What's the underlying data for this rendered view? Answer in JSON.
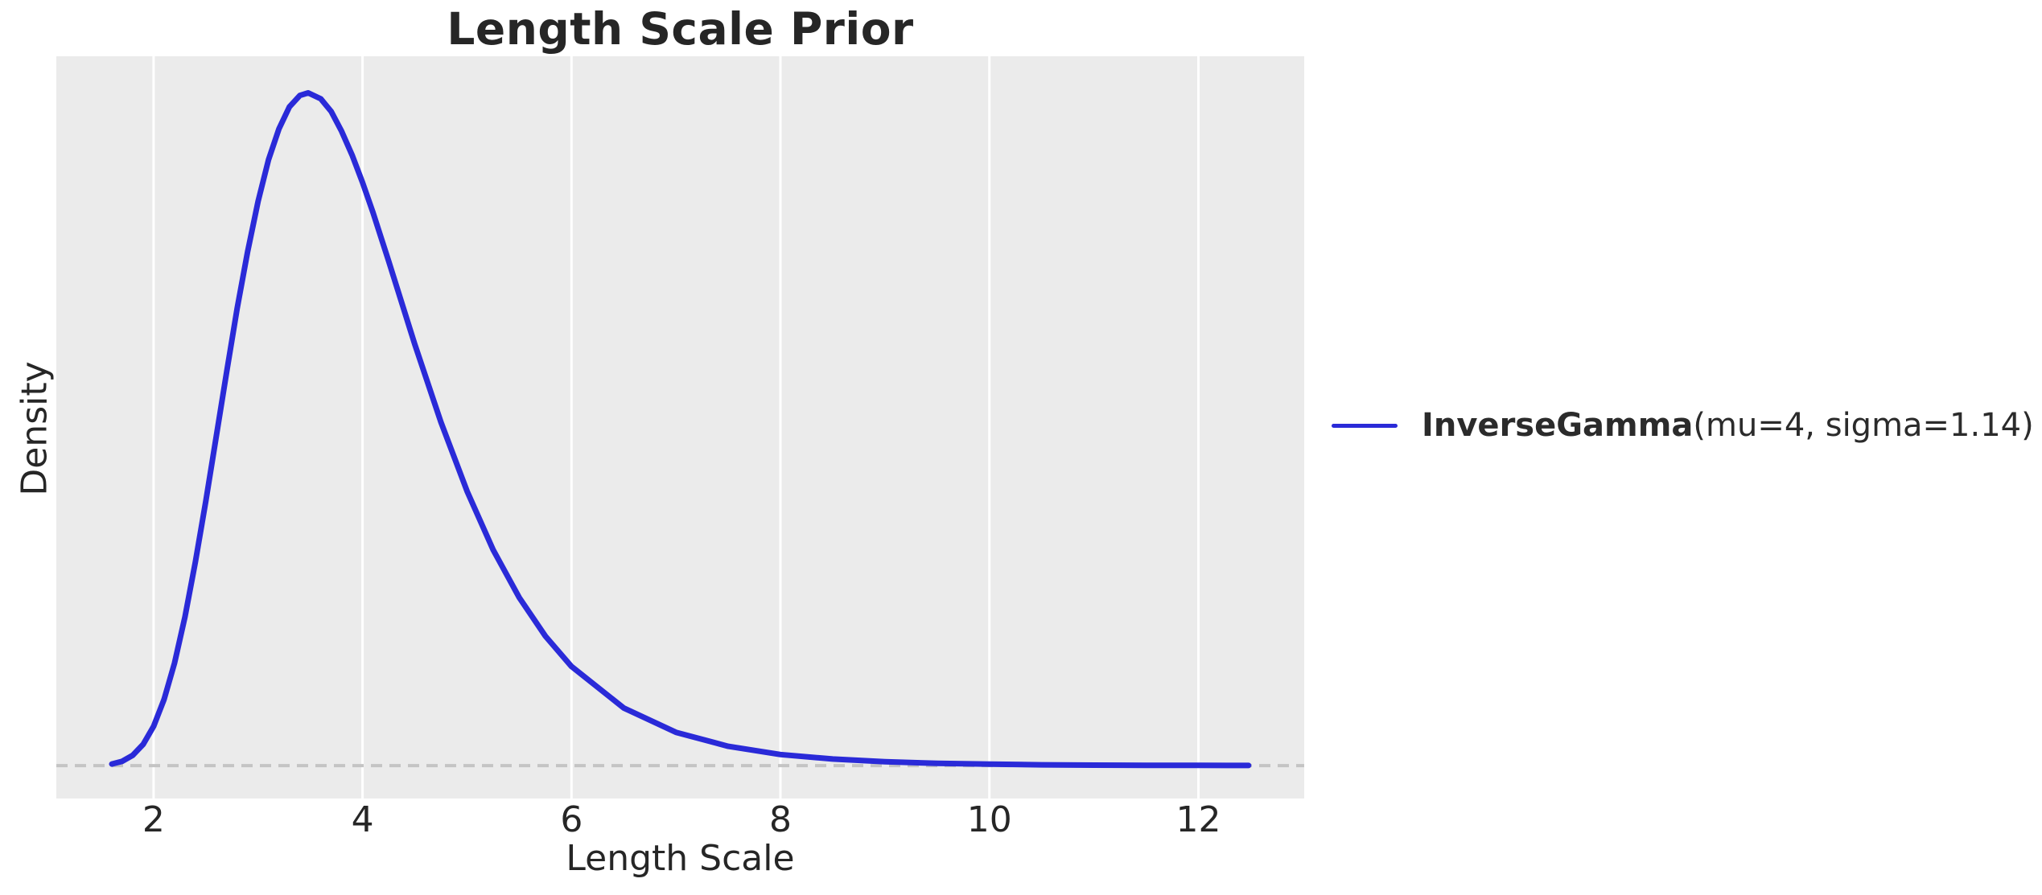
{
  "chart_data": {
    "type": "line",
    "title": "Length Scale Prior",
    "xlabel": "Length Scale",
    "ylabel": "Density",
    "x_ticks": [
      2,
      4,
      6,
      8,
      10,
      12
    ],
    "y_ticks": [],
    "xlim": [
      1.069,
      13.013
    ],
    "ylim": [
      -0.0205,
      0.4417
    ],
    "grid": "vertical-only",
    "plot_background": "#ebebeb",
    "gridline_color": "#ffffff",
    "legend_position": "center-right-outside",
    "baseline": {
      "y": 0,
      "style": "dashed",
      "color": "#c4c4c4"
    },
    "series": [
      {
        "name": "InverseGamma(mu=4, sigma=1.14)",
        "color": "#2a2ad8",
        "line_width": 7,
        "x": [
          1.6,
          1.7,
          1.8,
          1.9,
          2.0,
          2.1,
          2.2,
          2.3,
          2.4,
          2.5,
          2.6,
          2.7,
          2.8,
          2.9,
          3.0,
          3.1,
          3.2,
          3.3,
          3.4,
          3.48,
          3.6,
          3.7,
          3.8,
          3.9,
          4.0,
          4.1,
          4.25,
          4.5,
          4.75,
          5.0,
          5.25,
          5.5,
          5.75,
          6.0,
          6.5,
          7.0,
          7.5,
          8.0,
          8.5,
          9.0,
          9.5,
          10.0,
          10.5,
          11.0,
          11.5,
          12.0,
          12.48
        ],
        "y": [
          0.001,
          0.0027,
          0.0064,
          0.0132,
          0.0244,
          0.0412,
          0.0638,
          0.0926,
          0.1267,
          0.1647,
          0.205,
          0.2454,
          0.2848,
          0.3201,
          0.3514,
          0.3772,
          0.3965,
          0.4102,
          0.4173,
          0.4189,
          0.4152,
          0.4073,
          0.395,
          0.3802,
          0.3631,
          0.3444,
          0.3141,
          0.2624,
          0.2139,
          0.1709,
          0.1344,
          0.1046,
          0.0806,
          0.0617,
          0.0359,
          0.0207,
          0.012,
          0.0069,
          0.0041,
          0.0024,
          0.0014,
          0.0009,
          0.0005,
          0.0003,
          0.0002,
          0.00013,
          8e-05
        ]
      }
    ]
  },
  "legend": {
    "label_bold": "InverseGamma",
    "label_rest": "(mu=4, sigma=1.14)",
    "swatch_color": "#2a2ad8"
  }
}
